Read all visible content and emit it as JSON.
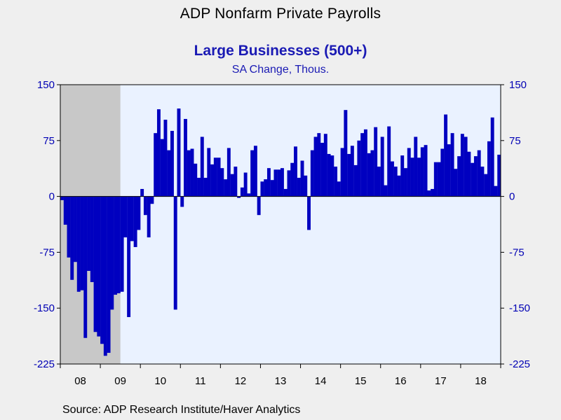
{
  "chart_data": {
    "type": "bar",
    "title": "ADP Nonfarm Private Payrolls",
    "subtitle": "Large Businesses (500+)",
    "units": "SA Change, Thous.",
    "source": "Source:  ADP Research Institute/Haver Analytics",
    "ylim": [
      -225,
      150
    ],
    "yticks": [
      150,
      75,
      0,
      -75,
      -150,
      -225
    ],
    "x_tick_labels": [
      "08",
      "09",
      "10",
      "11",
      "12",
      "13",
      "14",
      "15",
      "16",
      "17",
      "18"
    ],
    "recession_shading": {
      "start": "2008-01",
      "end": "2009-06"
    },
    "series": [
      {
        "start": "2008-01",
        "frequency": "monthly",
        "values": [
          -5,
          -38,
          -82,
          -112,
          -88,
          -128,
          -126,
          -190,
          -100,
          -115,
          -182,
          -188,
          -198,
          -214,
          -210,
          -152,
          -132,
          -130,
          -128,
          -55,
          -162,
          -60,
          -68,
          -45,
          10,
          -25,
          -55,
          -10,
          85,
          117,
          77,
          103,
          62,
          88,
          -152,
          118,
          -14,
          104,
          62,
          64,
          44,
          25,
          80,
          25,
          65,
          43,
          52,
          52,
          38,
          23,
          65,
          30,
          40,
          -2,
          12,
          32,
          4,
          62,
          68,
          -25,
          20,
          23,
          38,
          22,
          36,
          36,
          38,
          10,
          35,
          45,
          67,
          25,
          48,
          28,
          -45,
          62,
          80,
          85,
          72,
          84,
          57,
          55,
          40,
          20,
          65,
          116,
          57,
          68,
          42,
          75,
          85,
          90,
          58,
          62,
          93,
          40,
          80,
          15,
          94,
          47,
          40,
          28,
          55,
          38,
          65,
          52,
          80,
          52,
          66,
          69,
          8,
          10,
          46,
          46,
          64,
          110,
          70,
          85,
          37,
          54,
          84,
          80,
          60,
          45,
          54,
          62,
          40,
          30,
          74,
          106,
          14,
          56
        ],
        "color": "#0000c0"
      }
    ],
    "colors": {
      "bar": "#0000c0",
      "plot_background": "#eaf2ff",
      "recession": "#c8c8c8",
      "page_background": "#efefef",
      "title_blue": "#1a1ab4"
    }
  }
}
